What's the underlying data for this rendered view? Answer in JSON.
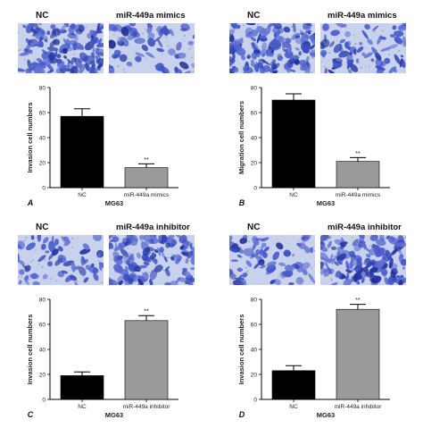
{
  "chart_data": [
    {
      "type": "bar",
      "panel": "A",
      "image_labels": [
        "NC",
        "miR-449a mimics"
      ],
      "categories": [
        "NC",
        "miR-449a mimics"
      ],
      "values": [
        57,
        16
      ],
      "errors": [
        6,
        3
      ],
      "significance": [
        "",
        "**"
      ],
      "ylabel": "Invasion cell numbers",
      "xlabel": "MG63",
      "ylim": [
        0,
        80
      ],
      "yticks": [
        0,
        20,
        40,
        60,
        80
      ],
      "colors": [
        "#000000",
        "#9a9a9a"
      ],
      "grid": false
    },
    {
      "type": "bar",
      "panel": "B",
      "image_labels": [
        "NC",
        "miR-449a mimics"
      ],
      "categories": [
        "NC",
        "miR-449a mimics"
      ],
      "values": [
        70,
        21
      ],
      "errors": [
        5,
        3
      ],
      "significance": [
        "",
        "**"
      ],
      "ylabel": "Migration cell numbers",
      "xlabel": "MG63",
      "ylim": [
        0,
        80
      ],
      "yticks": [
        0,
        20,
        40,
        60,
        80
      ],
      "colors": [
        "#000000",
        "#9a9a9a"
      ],
      "grid": false
    },
    {
      "type": "bar",
      "panel": "C",
      "image_labels": [
        "NC",
        "miR-449a inhibitor"
      ],
      "categories": [
        "NC",
        "miR-449a inhibitor"
      ],
      "values": [
        19,
        63
      ],
      "errors": [
        3,
        4
      ],
      "significance": [
        "",
        "**"
      ],
      "ylabel": "Invasion cell numbers",
      "xlabel": "MG63",
      "ylim": [
        0,
        80
      ],
      "yticks": [
        0,
        20,
        40,
        60,
        80
      ],
      "colors": [
        "#000000",
        "#9a9a9a"
      ],
      "grid": false
    },
    {
      "type": "bar",
      "panel": "D",
      "image_labels": [
        "NC",
        "miR-449a inhibitor"
      ],
      "categories": [
        "NC",
        "miR-449a inhibitor"
      ],
      "values": [
        23,
        72
      ],
      "errors": [
        4,
        4
      ],
      "significance": [
        "",
        "**"
      ],
      "ylabel": "Invasion cell numbers",
      "xlabel": "MG63",
      "ylim": [
        0,
        80
      ],
      "yticks": [
        0,
        20,
        40,
        60,
        80
      ],
      "colors": [
        "#000000",
        "#9a9a9a"
      ],
      "grid": false
    }
  ]
}
